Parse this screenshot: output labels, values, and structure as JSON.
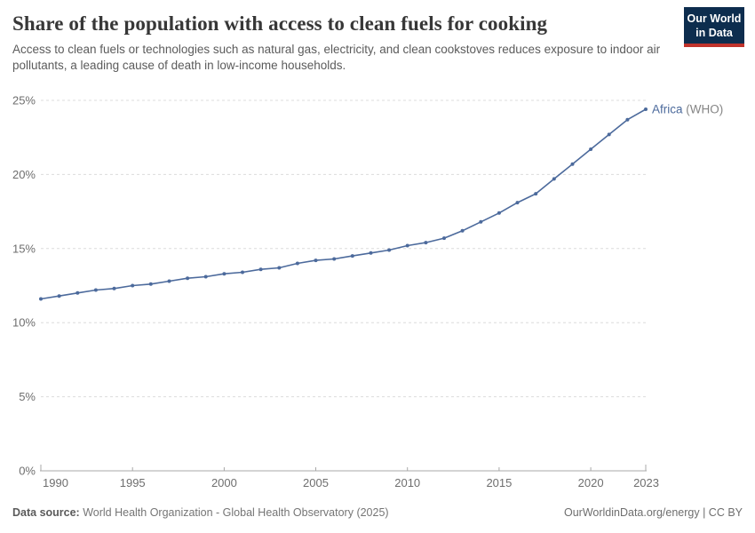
{
  "chart_data": {
    "type": "line",
    "title": "Share of the population with access to clean fuels for cooking",
    "subtitle": "Access to clean fuels or technologies such as natural gas, electricity, and clean cookstoves reduces exposure to indoor air pollutants, a leading cause of death in low-income households.",
    "unit": "%",
    "xlabel": "",
    "ylabel": "",
    "xlim": [
      1990,
      2023
    ],
    "ylim": [
      0,
      25
    ],
    "yticks": [
      0,
      5,
      10,
      15,
      20,
      25
    ],
    "xticks": [
      1990,
      1995,
      2000,
      2005,
      2010,
      2015,
      2020,
      2023
    ],
    "grid": "horizontal-dashed",
    "legend": "end-of-line-label",
    "x": [
      1990,
      1991,
      1992,
      1993,
      1994,
      1995,
      1996,
      1997,
      1998,
      1999,
      2000,
      2001,
      2002,
      2003,
      2004,
      2005,
      2006,
      2007,
      2008,
      2009,
      2010,
      2011,
      2012,
      2013,
      2014,
      2015,
      2016,
      2017,
      2018,
      2019,
      2020,
      2021,
      2022,
      2023
    ],
    "series": [
      {
        "name": "Africa (WHO)",
        "label_main": "Africa",
        "label_suffix": " (WHO)",
        "color": "#4c6a9c",
        "values": [
          11.6,
          11.8,
          12.0,
          12.2,
          12.3,
          12.5,
          12.6,
          12.8,
          13.0,
          13.1,
          13.3,
          13.4,
          13.6,
          13.7,
          14.0,
          14.2,
          14.3,
          14.5,
          14.7,
          14.9,
          15.2,
          15.4,
          15.7,
          16.2,
          16.8,
          17.4,
          18.1,
          18.7,
          19.7,
          20.7,
          21.7,
          22.7,
          23.7,
          24.4
        ]
      }
    ]
  },
  "branding": {
    "logo_line1": "Our World",
    "logo_line2": "in Data",
    "logo_bg": "#0d2d4e",
    "logo_stripe": "#c0332b"
  },
  "theme": {
    "series_color": "#4c6a9c",
    "muted_label": "#858585",
    "grid_color": "#dcdcdc",
    "axis_color": "#a8a8a8",
    "axis_text": "#6e6e6e"
  },
  "footer": {
    "datasource_label": "Data source:",
    "datasource_text": " World Health Organization - Global Health Observatory (2025)",
    "right_text": "OurWorldinData.org/energy | CC BY"
  }
}
